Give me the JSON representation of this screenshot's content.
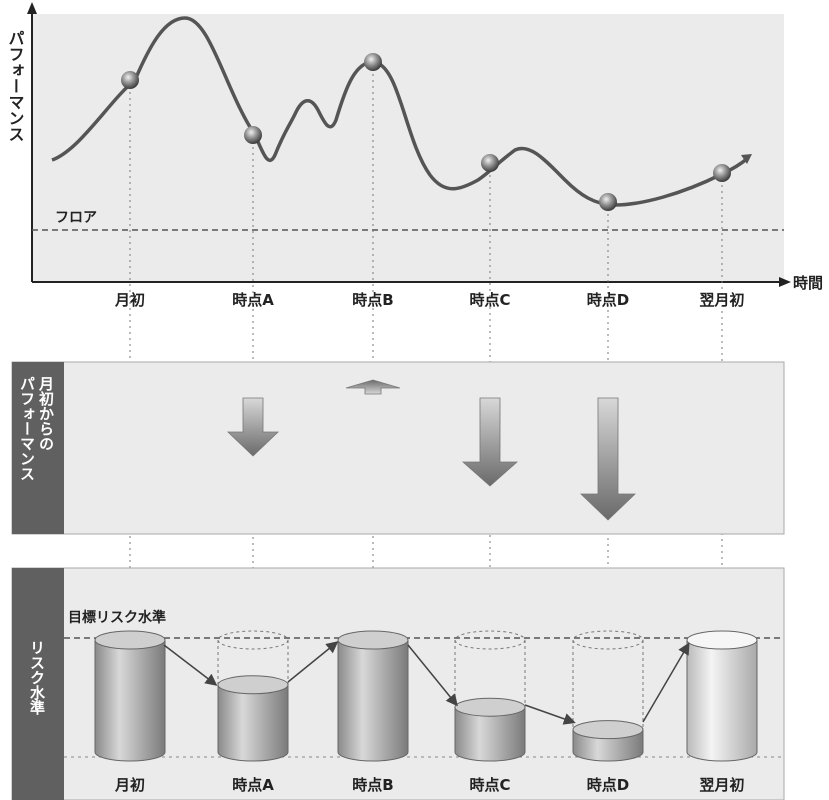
{
  "top_chart": {
    "y_axis_label": "パフォーマンス",
    "x_axis_label": "時間",
    "floor_label": "フロア",
    "time_points": [
      "月初",
      "時点A",
      "時点B",
      "時点C",
      "時点D",
      "翌月初"
    ]
  },
  "middle_panel": {
    "side_label_line1": "月初からの",
    "side_label_line2": "パフォーマンス",
    "arrows": [
      {
        "time": "時点A",
        "direction": "down",
        "magnitude": 0.45
      },
      {
        "time": "時点B",
        "direction": "up",
        "magnitude": 0.1
      },
      {
        "time": "時点C",
        "direction": "down",
        "magnitude": 0.7
      },
      {
        "time": "時点D",
        "direction": "down",
        "magnitude": 1.0
      }
    ]
  },
  "bottom_panel": {
    "side_label": "リスク水準",
    "target_label": "目標リスク水準",
    "cylinders": [
      {
        "time": "月初",
        "fill": 1.0
      },
      {
        "time": "時点A",
        "fill": 0.6
      },
      {
        "time": "時点B",
        "fill": 1.0
      },
      {
        "time": "時点C",
        "fill": 0.4
      },
      {
        "time": "時点D",
        "fill": 0.2
      },
      {
        "time": "翌月初",
        "fill": 1.0
      }
    ],
    "time_points": [
      "月初",
      "時点A",
      "時点B",
      "時点C",
      "時点D",
      "翌月初"
    ]
  },
  "colors": {
    "panel_bg": "#ebebeb",
    "side_tab": "#606060",
    "curve": "#555555",
    "dashed": "#777777"
  }
}
